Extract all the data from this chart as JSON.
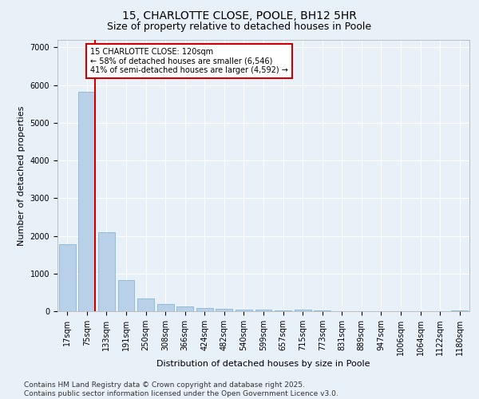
{
  "title1": "15, CHARLOTTE CLOSE, POOLE, BH12 5HR",
  "title2": "Size of property relative to detached houses in Poole",
  "xlabel": "Distribution of detached houses by size in Poole",
  "ylabel": "Number of detached properties",
  "categories": [
    "17sqm",
    "75sqm",
    "133sqm",
    "191sqm",
    "250sqm",
    "308sqm",
    "366sqm",
    "424sqm",
    "482sqm",
    "540sqm",
    "599sqm",
    "657sqm",
    "715sqm",
    "773sqm",
    "831sqm",
    "889sqm",
    "947sqm",
    "1006sqm",
    "1064sqm",
    "1122sqm",
    "1180sqm"
  ],
  "values": [
    1780,
    5820,
    2100,
    820,
    330,
    200,
    130,
    80,
    65,
    50,
    40,
    30,
    50,
    15,
    10,
    8,
    6,
    5,
    4,
    3,
    30
  ],
  "bar_color": "#b8d0e8",
  "bar_edge_color": "#7aaed0",
  "vline_color": "#cc0000",
  "annotation_text": "15 CHARLOTTE CLOSE: 120sqm\n← 58% of detached houses are smaller (6,546)\n41% of semi-detached houses are larger (4,592) →",
  "annotation_box_color": "#ffffff",
  "annotation_box_edge": "#cc0000",
  "ylim": [
    0,
    7200
  ],
  "yticks": [
    0,
    1000,
    2000,
    3000,
    4000,
    5000,
    6000,
    7000
  ],
  "background_color": "#e8f0f8",
  "grid_color": "#ffffff",
  "footer": "Contains HM Land Registry data © Crown copyright and database right 2025.\nContains public sector information licensed under the Open Government Licence v3.0.",
  "title_fontsize": 10,
  "subtitle_fontsize": 9,
  "axis_label_fontsize": 8,
  "tick_fontsize": 7,
  "footer_fontsize": 6.5
}
